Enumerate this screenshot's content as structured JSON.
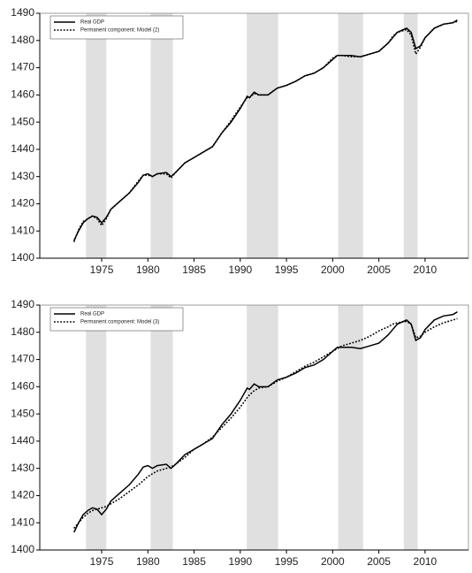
{
  "chart_data": [
    {
      "type": "line",
      "x": [
        1972,
        1972.5,
        1973,
        1973.5,
        1974,
        1974.5,
        1975,
        1975.5,
        1976,
        1977,
        1978,
        1979,
        1979.5,
        1980,
        1980.5,
        1981,
        1982,
        1982.5,
        1983,
        1984,
        1985,
        1986,
        1987,
        1988,
        1989,
        1990,
        1990.75,
        1991,
        1991.5,
        1992,
        1993,
        1994,
        1995,
        1996,
        1997,
        1998,
        1999,
        2000,
        2000.5,
        2001,
        2002,
        2003,
        2004,
        2005,
        2006,
        2006.5,
        2007,
        2008,
        2008.5,
        2009,
        2009.5,
        2010,
        2011,
        2012,
        2013,
        2013.5
      ],
      "series": [
        {
          "name": "Real GDP",
          "color": "#000000",
          "style": "solid",
          "values": [
            1406.5,
            1410,
            1413,
            1414.5,
            1415.5,
            1415,
            1413,
            1415,
            1418,
            1421,
            1424,
            1428,
            1430.5,
            1431,
            1430,
            1431,
            1431.5,
            1430,
            1431.5,
            1435,
            1437,
            1439,
            1441,
            1446,
            1450,
            1455,
            1459.5,
            1459,
            1461,
            1460,
            1460,
            1462.5,
            1463.5,
            1465,
            1467,
            1468,
            1470,
            1473,
            1474.5,
            1474.5,
            1474.5,
            1474,
            1475,
            1476,
            1479,
            1481,
            1483,
            1484.5,
            1483,
            1477,
            1478,
            1481,
            1484.5,
            1486,
            1486.5,
            1487.5
          ]
        },
        {
          "name": "Permanent component: Model (2)",
          "color": "#000000",
          "style": "dotted",
          "values": [
            1406,
            1410.5,
            1413.5,
            1414.5,
            1415.5,
            1414.5,
            1412,
            1414.5,
            1418,
            1421,
            1424,
            1428.5,
            1430.5,
            1430.5,
            1430,
            1431,
            1431,
            1429.5,
            1431.5,
            1435,
            1437,
            1439,
            1441,
            1446,
            1450.5,
            1455.5,
            1459,
            1459,
            1460.5,
            1460,
            1460,
            1462.5,
            1463.5,
            1465,
            1467,
            1468,
            1470,
            1473.5,
            1474.5,
            1474.5,
            1474,
            1474,
            1475,
            1476,
            1479,
            1481.5,
            1483,
            1484,
            1482,
            1475,
            1477.5,
            1481,
            1484.5,
            1486,
            1486.5,
            1487
          ]
        }
      ],
      "shaded_periods": [
        [
          1973.3,
          1975.5
        ],
        [
          1980.3,
          1982.7
        ],
        [
          1990.7,
          1994.1
        ],
        [
          2000.6,
          2003.3
        ],
        [
          2007.7,
          2009.2
        ]
      ],
      "shade_color": "#e0e0e0",
      "xlim": [
        1968.3,
        2014.7
      ],
      "xticks": [
        1975,
        1980,
        1985,
        1990,
        1995,
        2000,
        2005,
        2010
      ],
      "ylim": [
        1400,
        1490
      ],
      "yticks": [
        1400,
        1410,
        1420,
        1430,
        1440,
        1450,
        1460,
        1470,
        1480,
        1490
      ],
      "legend": "upper-left"
    },
    {
      "type": "line",
      "x": [
        1972,
        1972.5,
        1973,
        1973.5,
        1974,
        1974.5,
        1975,
        1975.5,
        1976,
        1977,
        1978,
        1979,
        1979.5,
        1980,
        1980.5,
        1981,
        1982,
        1982.5,
        1983,
        1984,
        1985,
        1986,
        1987,
        1988,
        1989,
        1990,
        1990.75,
        1991,
        1991.5,
        1992,
        1993,
        1994,
        1995,
        1996,
        1997,
        1998,
        1999,
        2000,
        2000.5,
        2001,
        2002,
        2003,
        2004,
        2005,
        2006,
        2006.5,
        2007,
        2008,
        2008.5,
        2009,
        2009.5,
        2010,
        2011,
        2012,
        2013,
        2013.5
      ],
      "series": [
        {
          "name": "Real GDP",
          "color": "#000000",
          "style": "solid",
          "values": [
            1406.5,
            1410,
            1413,
            1414.5,
            1415.5,
            1415,
            1413,
            1415,
            1418,
            1421,
            1424,
            1428,
            1430.5,
            1431,
            1430,
            1431,
            1431.5,
            1430,
            1431.5,
            1435,
            1437,
            1439,
            1441,
            1446,
            1450,
            1455,
            1459.5,
            1459,
            1461,
            1460,
            1460,
            1462.5,
            1463.5,
            1465,
            1467,
            1468,
            1470,
            1473,
            1474.5,
            1474.5,
            1474.5,
            1474,
            1475,
            1476,
            1479,
            1481,
            1483,
            1484.5,
            1483,
            1477,
            1478,
            1481,
            1484.5,
            1486,
            1486.5,
            1487.5
          ]
        },
        {
          "name": "Permanent component: Model (3)",
          "color": "#000000",
          "style": "dotted",
          "values": [
            1408,
            1410,
            1412,
            1413.5,
            1414.5,
            1415,
            1415.5,
            1416,
            1417,
            1419,
            1421.5,
            1424,
            1425.5,
            1427,
            1428,
            1429,
            1430,
            1430.5,
            1431.5,
            1434,
            1437,
            1439,
            1441.5,
            1445,
            1448.5,
            1452.5,
            1456,
            1457,
            1458.5,
            1459.5,
            1460,
            1462,
            1463.5,
            1465.5,
            1467.5,
            1469,
            1471,
            1473,
            1474,
            1475,
            1476,
            1477,
            1478.5,
            1480.5,
            1482,
            1483,
            1483.5,
            1484,
            1483,
            1478,
            1478.5,
            1480,
            1482,
            1483.5,
            1484.5,
            1485
          ]
        }
      ],
      "shaded_periods": [
        [
          1973.3,
          1975.5
        ],
        [
          1980.3,
          1982.7
        ],
        [
          1990.7,
          1994.1
        ],
        [
          2000.6,
          2003.3
        ],
        [
          2007.7,
          2009.2
        ]
      ],
      "shade_color": "#e0e0e0",
      "xlim": [
        1968.3,
        2014.7
      ],
      "xticks": [
        1975,
        1980,
        1985,
        1990,
        1995,
        2000,
        2005,
        2010
      ],
      "ylim": [
        1400,
        1490
      ],
      "yticks": [
        1400,
        1410,
        1420,
        1430,
        1440,
        1450,
        1460,
        1470,
        1480,
        1490
      ],
      "legend": "upper-left"
    }
  ]
}
